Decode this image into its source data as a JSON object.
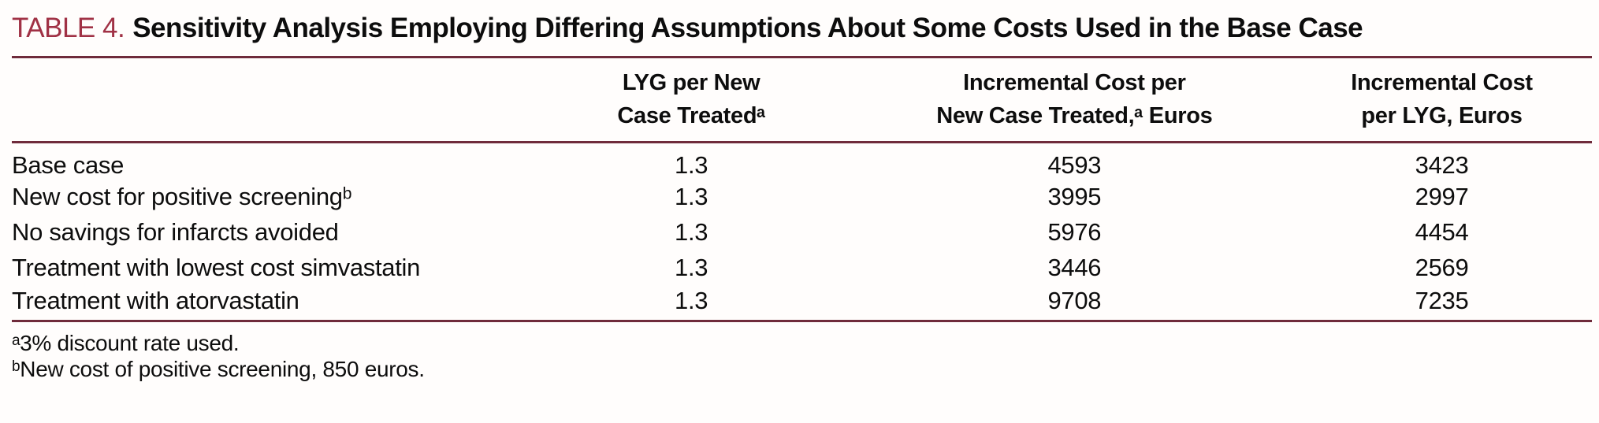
{
  "title": {
    "label": "TABLE 4.",
    "text": "Sensitivity Analysis Employing Differing Assumptions About Some Costs Used in the Base Case"
  },
  "table": {
    "columns": [
      "",
      "LYG per New\nCase Treatedᵃ",
      "Incremental Cost per\nNew Case Treated,ᵃ Euros",
      "Incremental Cost\nper LYG, Euros"
    ],
    "rows": [
      {
        "label": "Base case",
        "lyg": "1.3",
        "cost_per_new_case": "4593",
        "cost_per_lyg": "3423"
      },
      {
        "label": "New cost for positive screeningᵇ",
        "lyg": "1.3",
        "cost_per_new_case": "3995",
        "cost_per_lyg": "2997"
      },
      {
        "label": "No savings for infarcts avoided",
        "lyg": "1.3",
        "cost_per_new_case": "5976",
        "cost_per_lyg": "4454"
      },
      {
        "label": "Treatment with lowest cost simvastatin",
        "lyg": "1.3",
        "cost_per_new_case": "3446",
        "cost_per_lyg": "2569"
      },
      {
        "label": "Treatment with atorvastatin",
        "lyg": "1.3",
        "cost_per_new_case": "9708",
        "cost_per_lyg": "7235"
      }
    ]
  },
  "footnotes": [
    "ᵃ3% discount rate used.",
    "ᵇNew cost of positive screening, 850 euros."
  ],
  "colors": {
    "accent": "#a03145",
    "rule": "#6f2b3b",
    "text": "#0d0d0d",
    "page_background": "#fffdfc"
  }
}
